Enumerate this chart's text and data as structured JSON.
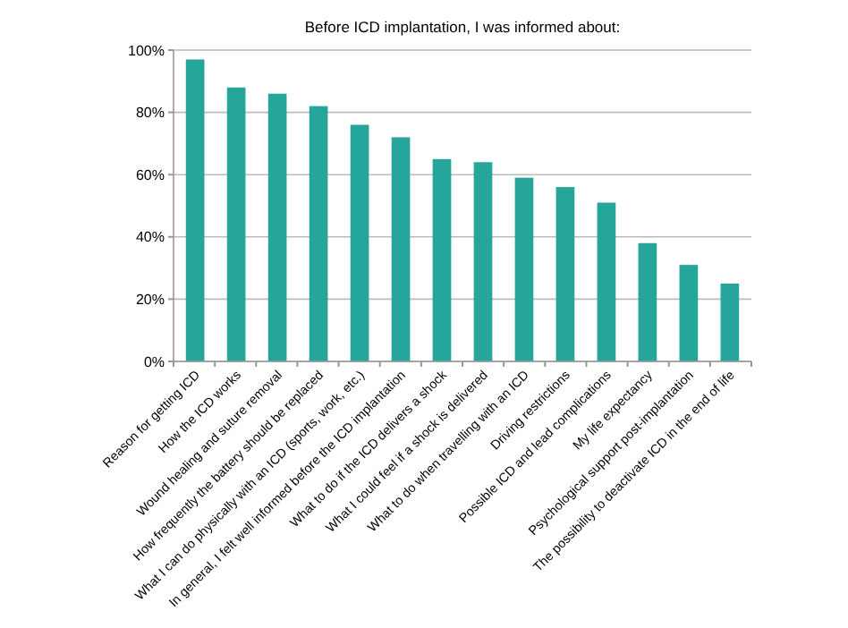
{
  "chart_data": {
    "type": "bar",
    "title": "Before ICD implantation, I was informed about:",
    "categories": [
      "Reason for getting ICD",
      "How the ICD works",
      "Wound healing and suture removal",
      "How frequently the battery should be replaced",
      "What I can do physically with an ICD (sports, work, etc.)",
      "In general, I felt well informed before the ICD implantation",
      "What to do if the ICD delivers a shock",
      "What I could feel if a shock is delivered",
      "What to do when travelling with an ICD",
      "Driving restrictions",
      "Possible ICD and lead complications",
      "My life expectancy",
      "Psychological support post-implantation",
      "The possibility to deactivate ICD in the end of life"
    ],
    "values": [
      97,
      88,
      86,
      82,
      76,
      72,
      65,
      64,
      59,
      56,
      51,
      38,
      31,
      25
    ],
    "color": "#26a69a",
    "ylim": [
      0,
      100
    ],
    "yticks": [
      {
        "value": 0,
        "label": "0%"
      },
      {
        "value": 20,
        "label": "20%"
      },
      {
        "value": 40,
        "label": "40%"
      },
      {
        "value": 60,
        "label": "60%"
      },
      {
        "value": 80,
        "label": "80%"
      },
      {
        "value": 100,
        "label": "100%"
      }
    ],
    "grid": "y"
  }
}
